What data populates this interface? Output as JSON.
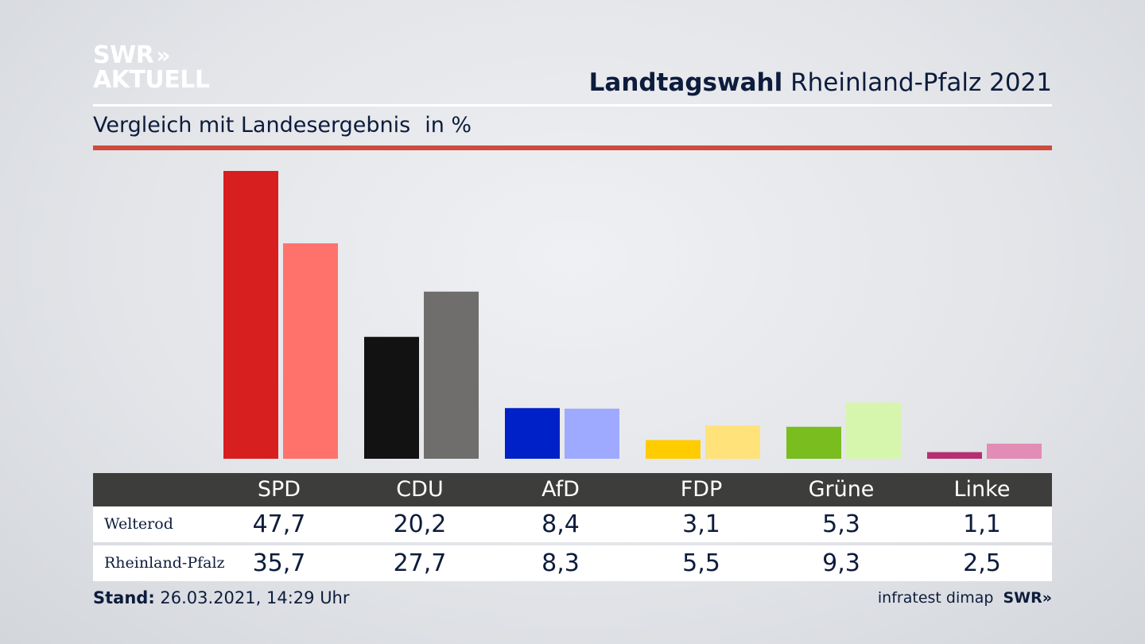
{
  "header": {
    "logo_line1": "SWR",
    "logo_chevrons": "»",
    "logo_line2": "AKTUELL",
    "title_bold": "Landtagswahl",
    "title_rest": "Rheinland-Pfalz 2021",
    "subtitle": "Vergleich mit Landesergebnis",
    "unit": "in %"
  },
  "chart_data": {
    "type": "bar",
    "categories": [
      "SPD",
      "CDU",
      "AfD",
      "FDP",
      "Grüne",
      "Linke"
    ],
    "series": [
      {
        "name": "Welterod",
        "values": [
          47.7,
          20.2,
          8.4,
          3.1,
          5.3,
          1.1
        ]
      },
      {
        "name": "Rheinland-Pfalz",
        "values": [
          35.7,
          27.7,
          8.3,
          5.5,
          9.3,
          2.5
        ]
      }
    ],
    "colors": {
      "Welterod": [
        "#d71f1f",
        "#121212",
        "#0021c8",
        "#ffcc00",
        "#79bd1f",
        "#b52f73"
      ],
      "Rheinland-Pfalz": [
        "#ff726c",
        "#706e6c",
        "#9eaaff",
        "#ffe27a",
        "#d6f6ae",
        "#e28db5"
      ]
    },
    "ylim": [
      0,
      50
    ]
  },
  "table": {
    "headers": [
      "SPD",
      "CDU",
      "AfD",
      "FDP",
      "Grüne",
      "Linke"
    ],
    "rows": [
      {
        "label": "Welterod",
        "values": [
          "47,7",
          "20,2",
          "8,4",
          "3,1",
          "5,3",
          "1,1"
        ]
      },
      {
        "label": "Rheinland-Pfalz",
        "values": [
          "35,7",
          "27,7",
          "8,3",
          "5,5",
          "9,3",
          "2,5"
        ]
      }
    ]
  },
  "footer": {
    "stand_label": "Stand:",
    "stand_value": "26.03.2021, 14:29 Uhr",
    "source": "infratest dimap",
    "brand": "SWR»"
  }
}
